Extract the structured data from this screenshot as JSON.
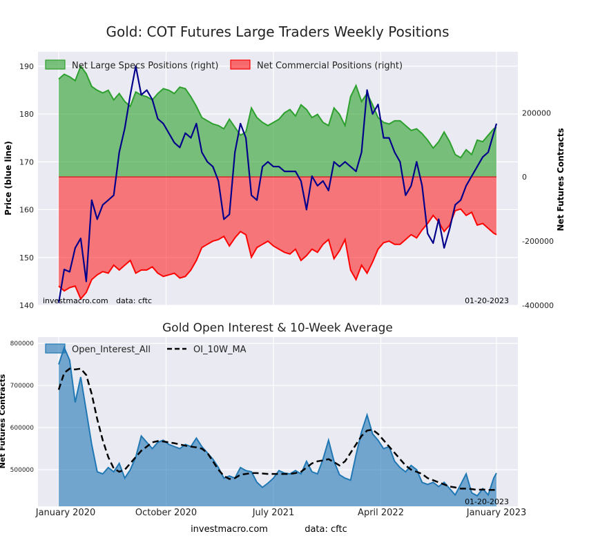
{
  "chart_data": [
    {
      "type": "area",
      "title": "Gold: COT Futures Large Traders Weekly Positions",
      "ylabel_left": "Price (blue line)",
      "ylabel_right": "Net Futures Contracts",
      "yticks_left": [
        "190",
        "180",
        "170",
        "160",
        "150",
        "140"
      ],
      "ylim_left": [
        140,
        193
      ],
      "yticks_right": [
        "200000",
        "0",
        "-200000",
        "-400000"
      ],
      "ylim_right": [
        -400000,
        390000
      ],
      "legend": [
        "Net Large Specs Positions (right)",
        "Net Commercial Positions (right)"
      ],
      "watermark_left": "investmacro.com",
      "watermark_data": "data: cftc",
      "date_stamp": "01-20-2023",
      "x_index": "weeks since 2020-01-03 (0..159)",
      "series": [
        {
          "name": "Net Large Specs Positions (right)",
          "color": "#2ca02c",
          "x": [
            0,
            2,
            4,
            6,
            8,
            10,
            12,
            14,
            16,
            18,
            20,
            22,
            24,
            26,
            28,
            30,
            32,
            34,
            36,
            38,
            40,
            42,
            44,
            46,
            48,
            50,
            52,
            54,
            56,
            58,
            60,
            62,
            64,
            66,
            68,
            70,
            72,
            74,
            76,
            78,
            80,
            82,
            84,
            86,
            88,
            90,
            92,
            94,
            96,
            98,
            100,
            102,
            104,
            106,
            108,
            110,
            112,
            114,
            116,
            118,
            120,
            122,
            124,
            126,
            128,
            130,
            132,
            134,
            136,
            138,
            140,
            142,
            144,
            146,
            148,
            150,
            152,
            154,
            156,
            158,
            159
          ],
          "values": [
            305000,
            320000,
            312000,
            300000,
            345000,
            322000,
            282000,
            270000,
            262000,
            270000,
            240000,
            260000,
            235000,
            220000,
            265000,
            255000,
            250000,
            240000,
            260000,
            275000,
            270000,
            260000,
            280000,
            275000,
            250000,
            220000,
            185000,
            175000,
            165000,
            160000,
            150000,
            180000,
            155000,
            130000,
            140000,
            215000,
            185000,
            170000,
            160000,
            170000,
            180000,
            200000,
            210000,
            190000,
            225000,
            210000,
            185000,
            195000,
            170000,
            160000,
            215000,
            195000,
            160000,
            250000,
            285000,
            235000,
            260000,
            225000,
            185000,
            170000,
            165000,
            175000,
            175000,
            160000,
            145000,
            150000,
            135000,
            115000,
            90000,
            110000,
            140000,
            110000,
            70000,
            60000,
            85000,
            70000,
            115000,
            110000,
            130000,
            150000,
            155000
          ]
        },
        {
          "name": "Net Commercial Positions (right)",
          "color": "#ff0000",
          "x": [
            0,
            2,
            4,
            6,
            8,
            10,
            12,
            14,
            16,
            18,
            20,
            22,
            24,
            26,
            28,
            30,
            32,
            34,
            36,
            38,
            40,
            42,
            44,
            46,
            48,
            50,
            52,
            54,
            56,
            58,
            60,
            62,
            64,
            66,
            68,
            70,
            72,
            74,
            76,
            78,
            80,
            82,
            84,
            86,
            88,
            90,
            92,
            94,
            96,
            98,
            100,
            102,
            104,
            106,
            108,
            110,
            112,
            114,
            116,
            118,
            120,
            122,
            124,
            126,
            128,
            130,
            132,
            134,
            136,
            138,
            140,
            142,
            144,
            146,
            148,
            150,
            152,
            154,
            156,
            158,
            159
          ],
          "values": [
            -340000,
            -355000,
            -345000,
            -340000,
            -380000,
            -360000,
            -320000,
            -305000,
            -295000,
            -300000,
            -275000,
            -290000,
            -275000,
            -260000,
            -300000,
            -290000,
            -290000,
            -280000,
            -300000,
            -310000,
            -305000,
            -300000,
            -315000,
            -310000,
            -290000,
            -260000,
            -220000,
            -210000,
            -200000,
            -195000,
            -185000,
            -215000,
            -190000,
            -170000,
            -180000,
            -250000,
            -220000,
            -210000,
            -200000,
            -215000,
            -225000,
            -235000,
            -240000,
            -225000,
            -260000,
            -245000,
            -225000,
            -235000,
            -210000,
            -195000,
            -255000,
            -230000,
            -195000,
            -290000,
            -320000,
            -275000,
            -300000,
            -265000,
            -225000,
            -205000,
            -200000,
            -210000,
            -210000,
            -195000,
            -180000,
            -190000,
            -165000,
            -145000,
            -120000,
            -140000,
            -170000,
            -150000,
            -105000,
            -100000,
            -120000,
            -110000,
            -150000,
            -145000,
            -160000,
            -175000,
            -180000
          ]
        },
        {
          "name": "Price",
          "color": "#00008b",
          "x": [
            0,
            2,
            4,
            6,
            8,
            10,
            12,
            14,
            16,
            18,
            20,
            22,
            24,
            26,
            28,
            30,
            32,
            34,
            36,
            38,
            40,
            42,
            44,
            46,
            48,
            50,
            52,
            54,
            56,
            58,
            60,
            62,
            64,
            66,
            68,
            70,
            72,
            74,
            76,
            78,
            80,
            82,
            84,
            86,
            88,
            90,
            92,
            94,
            96,
            98,
            100,
            102,
            104,
            106,
            108,
            110,
            112,
            114,
            116,
            118,
            120,
            122,
            124,
            126,
            128,
            130,
            132,
            134,
            136,
            138,
            140,
            142,
            144,
            146,
            148,
            150,
            152,
            154,
            156,
            158,
            159
          ],
          "values": [
            140.5,
            147.5,
            147,
            152,
            154,
            145,
            162,
            158,
            161,
            162,
            163,
            172,
            177,
            184,
            190,
            184,
            185,
            183,
            179,
            178,
            176,
            174,
            173,
            176,
            175,
            178,
            172,
            170,
            169,
            166,
            158,
            159,
            172,
            178,
            175,
            163,
            162,
            169,
            170,
            169,
            169,
            168,
            168,
            168,
            166,
            160,
            167,
            165,
            166,
            164,
            170,
            169,
            170,
            169,
            168,
            172,
            185,
            180,
            182,
            175,
            175,
            172,
            170,
            163,
            165,
            170,
            165,
            155,
            153,
            158,
            152,
            156,
            161,
            162,
            165,
            167,
            169,
            171,
            172,
            176,
            178
          ]
        }
      ]
    },
    {
      "type": "area",
      "title": "Gold Open Interest & 10-Week Average",
      "ylabel": "Net Futures Contracts",
      "yticks": [
        "800000",
        "700000",
        "600000",
        "500000"
      ],
      "ylim": [
        413000,
        815000
      ],
      "xticks": [
        "January 2020",
        "October 2020",
        "July 2021",
        "April 2022",
        "January 2023"
      ],
      "xtick_positions_weeks": [
        0,
        39,
        78,
        117,
        159
      ],
      "legend": [
        "Open_Interest_All",
        "OI_10W_MA"
      ],
      "date_stamp": "01-20-2023",
      "series": [
        {
          "name": "Open_Interest_All",
          "color": "#1f77b4",
          "x": [
            0,
            2,
            4,
            6,
            8,
            10,
            12,
            14,
            16,
            18,
            20,
            22,
            24,
            26,
            28,
            30,
            32,
            34,
            36,
            38,
            40,
            42,
            44,
            46,
            48,
            50,
            52,
            54,
            56,
            58,
            60,
            62,
            64,
            66,
            68,
            70,
            72,
            74,
            76,
            78,
            80,
            82,
            84,
            86,
            88,
            90,
            92,
            94,
            96,
            98,
            100,
            102,
            104,
            106,
            108,
            110,
            112,
            114,
            116,
            118,
            120,
            122,
            124,
            126,
            128,
            130,
            132,
            134,
            136,
            138,
            140,
            142,
            144,
            146,
            148,
            150,
            152,
            154,
            156,
            158,
            159
          ],
          "values": [
            750000,
            790000,
            760000,
            660000,
            720000,
            640000,
            560000,
            495000,
            490000,
            505000,
            495000,
            515000,
            480000,
            500000,
            530000,
            580000,
            565000,
            550000,
            565000,
            570000,
            560000,
            555000,
            550000,
            560000,
            555000,
            575000,
            555000,
            540000,
            525000,
            505000,
            480000,
            485000,
            480000,
            505000,
            498000,
            495000,
            470000,
            458000,
            468000,
            480000,
            498000,
            492000,
            490000,
            498000,
            490000,
            520000,
            495000,
            490000,
            525000,
            570000,
            520000,
            488000,
            480000,
            475000,
            535000,
            590000,
            630000,
            585000,
            570000,
            550000,
            555000,
            520000,
            505000,
            495000,
            510000,
            500000,
            470000,
            465000,
            470000,
            460000,
            470000,
            455000,
            440000,
            465000,
            490000,
            445000,
            438000,
            455000,
            440000,
            480000,
            492000
          ]
        },
        {
          "name": "OI_10W_MA",
          "color": "#000000",
          "x": [
            0,
            2,
            4,
            6,
            8,
            10,
            12,
            14,
            16,
            18,
            20,
            22,
            24,
            26,
            28,
            30,
            32,
            34,
            36,
            38,
            40,
            42,
            44,
            46,
            48,
            50,
            52,
            54,
            56,
            58,
            60,
            62,
            64,
            66,
            68,
            70,
            72,
            74,
            76,
            78,
            80,
            82,
            84,
            86,
            88,
            90,
            92,
            94,
            96,
            98,
            100,
            102,
            104,
            106,
            108,
            110,
            112,
            114,
            116,
            118,
            120,
            122,
            124,
            126,
            128,
            130,
            132,
            134,
            136,
            138,
            140,
            142,
            144,
            146,
            148,
            150,
            152,
            154,
            156,
            158,
            159
          ],
          "values": [
            690000,
            730000,
            740000,
            738000,
            740000,
            725000,
            680000,
            620000,
            570000,
            530000,
            503000,
            495000,
            500000,
            515000,
            530000,
            545000,
            555000,
            565000,
            568000,
            567000,
            565000,
            563000,
            560000,
            557000,
            555000,
            553000,
            550000,
            540000,
            520000,
            500000,
            485000,
            478000,
            480000,
            488000,
            490000,
            492000,
            492000,
            491000,
            490000,
            490000,
            490000,
            490000,
            490000,
            492000,
            495000,
            505000,
            515000,
            520000,
            522000,
            525000,
            518000,
            510000,
            520000,
            540000,
            560000,
            580000,
            593000,
            595000,
            585000,
            570000,
            555000,
            540000,
            525000,
            510000,
            500000,
            495000,
            490000,
            480000,
            475000,
            470000,
            465000,
            460000,
            458000,
            455000,
            455000,
            454000,
            452000,
            453000,
            452000,
            452000,
            451000
          ]
        }
      ]
    }
  ],
  "footer": {
    "site": "investmacro.com",
    "data": "data: cftc"
  }
}
